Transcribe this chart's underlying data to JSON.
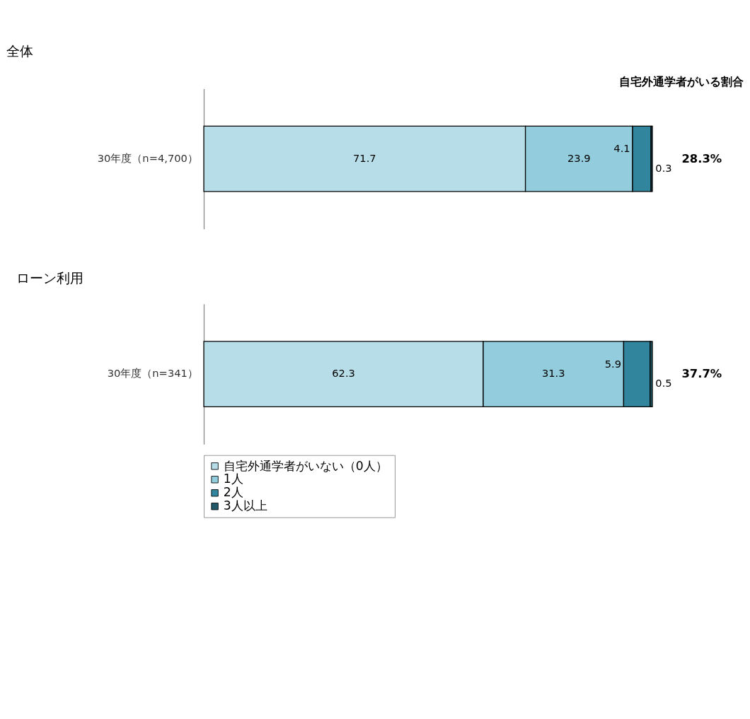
{
  "chart_data": [
    {
      "type": "bar",
      "title": "全体",
      "orientation": "horizontal",
      "stacked": true,
      "data_labels": true,
      "xlim": [
        0,
        100
      ],
      "tick_labels": "y",
      "grid": false,
      "legend": "bottom",
      "categories": [
        "30年度（n=4,700）"
      ],
      "series": [
        {
          "name": "自宅外通学者がいない（0人）",
          "color": "#b7dee8",
          "values": [
            71.7
          ]
        },
        {
          "name": "1人",
          "color": "#93cddd",
          "values": [
            23.9
          ]
        },
        {
          "name": "2人",
          "color": "#31859c",
          "values": [
            4.1
          ]
        },
        {
          "name": "3人以上",
          "color": "#215968",
          "values": [
            0.3
          ]
        }
      ],
      "annotations": [
        "自宅外通学者がいる割合",
        "28.3%"
      ]
    },
    {
      "type": "bar",
      "title": "ローン利用",
      "orientation": "horizontal",
      "stacked": true,
      "data_labels": true,
      "xlim": [
        0,
        100
      ],
      "tick_labels": "y",
      "grid": false,
      "legend": "bottom",
      "categories": [
        "30年度（n=341）"
      ],
      "series": [
        {
          "name": "自宅外通学者がいない（0人）",
          "color": "#b7dee8",
          "values": [
            62.3
          ]
        },
        {
          "name": "1人",
          "color": "#93cddd",
          "values": [
            31.3
          ]
        },
        {
          "name": "2人",
          "color": "#31859c",
          "values": [
            5.9
          ]
        },
        {
          "name": "3人以上",
          "color": "#215968",
          "values": [
            0.5
          ]
        }
      ],
      "annotations": [
        "37.7%"
      ]
    }
  ]
}
